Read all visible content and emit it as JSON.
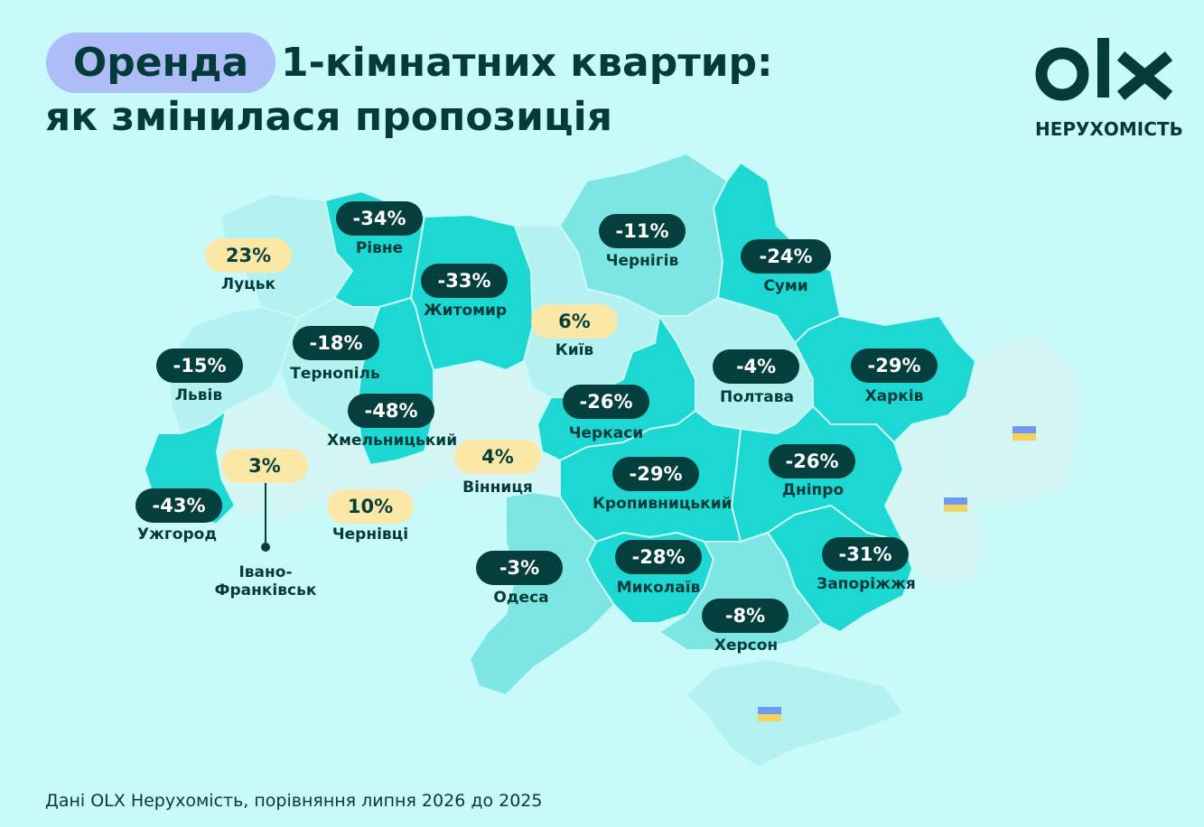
{
  "title": {
    "pill": "Оренда",
    "rest": "1-кімнатних квартир:",
    "line2": "як змінилася пропозиція"
  },
  "logo": {
    "text": "НЕРУХОМІСТЬ",
    "icon": "olx-logo-icon"
  },
  "colors": {
    "background": "#c9fafa",
    "region_dark": "#1dd8d2",
    "region_mid": "#7de6e3",
    "region_light": "#b3f2f0",
    "region_pale": "#d4f7f5",
    "pill_negative": "#053f3d",
    "pill_positive": "#fbe7a6",
    "title_pill": "#aebdf7"
  },
  "regions": [
    {
      "name": "Рівне",
      "change": "-34%"
    },
    {
      "name": "Луцьк",
      "change": "23%"
    },
    {
      "name": "Житомир",
      "change": "-33%"
    },
    {
      "name": "Чернігів",
      "change": "-11%"
    },
    {
      "name": "Суми",
      "change": "-24%"
    },
    {
      "name": "Київ",
      "change": "6%"
    },
    {
      "name": "Тернопіль",
      "change": "-18%"
    },
    {
      "name": "Львів",
      "change": "-15%"
    },
    {
      "name": "Полтава",
      "change": "-4%"
    },
    {
      "name": "Харків",
      "change": "-29%"
    },
    {
      "name": "Черкаси",
      "change": "-26%"
    },
    {
      "name": "Хмельницький",
      "change": "-48%"
    },
    {
      "name": "Вінниця",
      "change": "4%"
    },
    {
      "name": "Кропивницький",
      "change": "-29%"
    },
    {
      "name": "Дніпро",
      "change": "-26%"
    },
    {
      "name": "Івано-Франківськ",
      "change": "3%"
    },
    {
      "name": "Ужгород",
      "change": "-43%"
    },
    {
      "name": "Чернівці",
      "change": "10%"
    },
    {
      "name": "Одеса",
      "change": "-3%"
    },
    {
      "name": "Миколаїв",
      "change": "-28%"
    },
    {
      "name": "Запоріжжя",
      "change": "-31%"
    },
    {
      "name": "Херсон",
      "change": "-8%"
    }
  ],
  "frankivsk_label": {
    "line1": "Івано-",
    "line2": "Франківськ"
  },
  "footer": "Дані OLX Нерухомість, порівняння липня 2026 до 2025"
}
